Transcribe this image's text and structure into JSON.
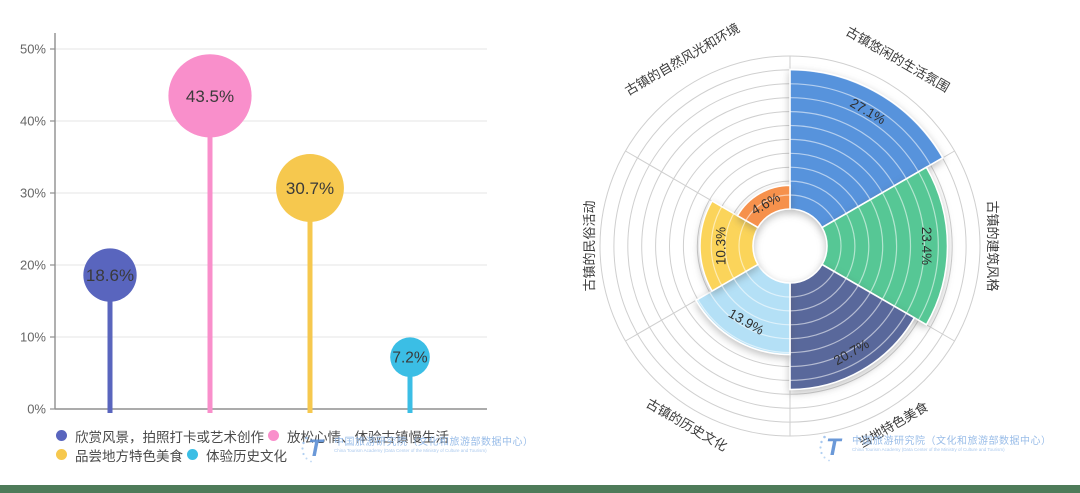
{
  "page": {
    "background": "#ffffff",
    "bottom_bar_color": "#4e7b59"
  },
  "chart_data": [
    {
      "type": "bar",
      "variant": "lollipop",
      "title": "",
      "categories": [
        "欣赏风景，拍照打卡或艺术创作",
        "放松心情、体验古镇慢生活",
        "品尝地方特色美食",
        "体验历史文化"
      ],
      "values": [
        18.6,
        43.5,
        30.7,
        7.2
      ],
      "value_labels": [
        "18.6%",
        "43.5%",
        "30.7%",
        "7.2%"
      ],
      "colors": [
        "#5965BE",
        "#F98FCB",
        "#F6C84E",
        "#3BBEE5"
      ],
      "xlabel": "",
      "ylabel": "",
      "ylim": [
        0,
        50
      ],
      "ytick_values": [
        0,
        10,
        20,
        30,
        40,
        50
      ],
      "ytick_labels": [
        "0%",
        "10%",
        "20%",
        "30%",
        "40%",
        "50%"
      ],
      "grid": "horizontal",
      "legend_position": "bottom",
      "legend_rows": [
        [
          0,
          1
        ],
        [
          2,
          3
        ]
      ]
    },
    {
      "type": "pie",
      "variant": "nightingale-rose",
      "title": "",
      "categories": [
        "古镇悠闲的生活氛围",
        "古镇的建筑风格",
        "当地特色美食",
        "古镇的历史文化",
        "古镇的民俗活动",
        "古镇的自然风光和环境"
      ],
      "values": [
        27.1,
        23.4,
        20.7,
        13.9,
        10.3,
        4.6
      ],
      "value_labels": [
        "27.1%",
        "23.4%",
        "20.7%",
        "13.9%",
        "10.3%",
        "4.6%"
      ],
      "colors": [
        "#5793DC",
        "#56C795",
        "#59689B",
        "#B4E0F6",
        "#FBD45A",
        "#F6914C"
      ],
      "start_angle_deg": 0,
      "sweep_per_sector_deg": 60,
      "clockwise": true,
      "grid": "polar-rings-and-spokes",
      "legend_position": "none"
    }
  ],
  "watermark": {
    "logo_glyph": "T",
    "line_cn": "中国旅游研究院（文化和旅游部数据中心）",
    "line_en": "China Tourism Academy (Data Center of the Ministry of Culture and Tourism)"
  }
}
